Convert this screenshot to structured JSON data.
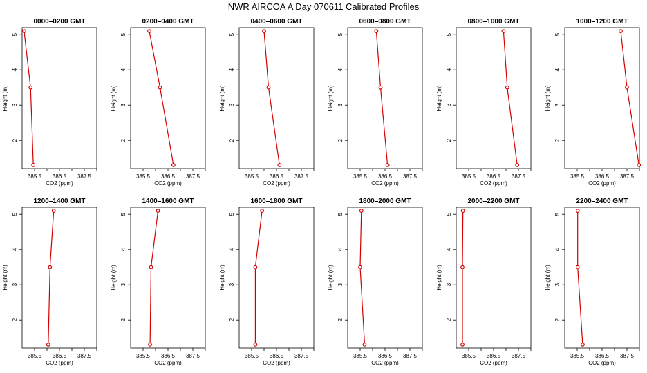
{
  "figure": {
    "title": "NWR AIRCOA A  Day 070611  Calibrated Profiles",
    "xlabel": "CO2 (ppm)",
    "ylabel": "Height (m)",
    "series_color": "#d40000",
    "marker_color": "#d40000"
  },
  "chart_data": [
    {
      "type": "line",
      "title": "0000–0200 GMT",
      "xlabel": "CO2 (ppm)",
      "ylabel": "Height (m)",
      "xlim": [
        385.0,
        388.0
      ],
      "ylim": [
        1.2,
        5.2
      ],
      "x_ticks": [
        385.5,
        386.5,
        387.5
      ],
      "x_tick_labels": [
        "385.5",
        "386.5",
        "387.5"
      ],
      "y_ticks": [
        2,
        3,
        4,
        5
      ],
      "y_tick_labels": [
        "2",
        "3",
        "4",
        "5"
      ],
      "points": [
        {
          "x": 385.45,
          "y": 1.3
        },
        {
          "x": 385.34,
          "y": 3.5
        },
        {
          "x": 385.08,
          "y": 5.1
        }
      ]
    },
    {
      "type": "line",
      "title": "0200–0400 GMT",
      "xlabel": "CO2 (ppm)",
      "ylabel": "Height (m)",
      "xlim": [
        385.0,
        388.0
      ],
      "ylim": [
        1.2,
        5.2
      ],
      "x_ticks": [
        385.5,
        386.5,
        387.5
      ],
      "x_tick_labels": [
        "385.5",
        "386.5",
        "387.5"
      ],
      "y_ticks": [
        2,
        3,
        4,
        5
      ],
      "y_tick_labels": [
        "2",
        "3",
        "4",
        "5"
      ],
      "points": [
        {
          "x": 386.72,
          "y": 1.3
        },
        {
          "x": 386.18,
          "y": 3.5
        },
        {
          "x": 385.75,
          "y": 5.1
        }
      ]
    },
    {
      "type": "line",
      "title": "0400–0600 GMT",
      "xlabel": "CO2 (ppm)",
      "ylabel": "Height (m)",
      "xlim": [
        385.0,
        388.0
      ],
      "ylim": [
        1.2,
        5.2
      ],
      "x_ticks": [
        385.5,
        386.5,
        387.5
      ],
      "x_tick_labels": [
        "385.5",
        "386.5",
        "387.5"
      ],
      "y_ticks": [
        2,
        3,
        4,
        5
      ],
      "y_tick_labels": [
        "2",
        "3",
        "4",
        "5"
      ],
      "points": [
        {
          "x": 386.62,
          "y": 1.3
        },
        {
          "x": 386.18,
          "y": 3.5
        },
        {
          "x": 386.0,
          "y": 5.1
        }
      ]
    },
    {
      "type": "line",
      "title": "0600–0800 GMT",
      "xlabel": "CO2 (ppm)",
      "ylabel": "Height (m)",
      "xlim": [
        385.0,
        388.0
      ],
      "ylim": [
        1.2,
        5.2
      ],
      "x_ticks": [
        385.5,
        386.5,
        387.5
      ],
      "x_tick_labels": [
        "385.5",
        "386.5",
        "387.5"
      ],
      "y_ticks": [
        2,
        3,
        4,
        5
      ],
      "y_tick_labels": [
        "2",
        "3",
        "4",
        "5"
      ],
      "points": [
        {
          "x": 386.6,
          "y": 1.3
        },
        {
          "x": 386.32,
          "y": 3.5
        },
        {
          "x": 386.15,
          "y": 5.1
        }
      ]
    },
    {
      "type": "line",
      "title": "0800–1000 GMT",
      "xlabel": "CO2 (ppm)",
      "ylabel": "Height (m)",
      "xlim": [
        385.0,
        388.0
      ],
      "ylim": [
        1.2,
        5.2
      ],
      "x_ticks": [
        385.5,
        386.5,
        387.5
      ],
      "x_tick_labels": [
        "385.5",
        "386.5",
        "387.5"
      ],
      "y_ticks": [
        2,
        3,
        4,
        5
      ],
      "y_tick_labels": [
        "2",
        "3",
        "4",
        "5"
      ],
      "points": [
        {
          "x": 387.45,
          "y": 1.3
        },
        {
          "x": 387.05,
          "y": 3.5
        },
        {
          "x": 386.9,
          "y": 5.1
        }
      ]
    },
    {
      "type": "line",
      "title": "1000–1200 GMT",
      "xlabel": "CO2 (ppm)",
      "ylabel": "Height (m)",
      "xlim": [
        385.0,
        388.0
      ],
      "ylim": [
        1.2,
        5.2
      ],
      "x_ticks": [
        385.5,
        386.5,
        387.5
      ],
      "x_tick_labels": [
        "385.5",
        "386.5",
        "387.5"
      ],
      "y_ticks": [
        2,
        3,
        4,
        5
      ],
      "y_tick_labels": [
        "2",
        "3",
        "4",
        "5"
      ],
      "points": [
        {
          "x": 387.98,
          "y": 1.3
        },
        {
          "x": 387.5,
          "y": 3.5
        },
        {
          "x": 387.25,
          "y": 5.1
        }
      ]
    },
    {
      "type": "line",
      "title": "1200–1400 GMT",
      "xlabel": "CO2 (ppm)",
      "ylabel": "Height (m)",
      "xlim": [
        385.0,
        388.0
      ],
      "ylim": [
        1.2,
        5.2
      ],
      "x_ticks": [
        385.5,
        386.5,
        387.5
      ],
      "x_tick_labels": [
        "385.5",
        "386.5",
        "387.5"
      ],
      "y_ticks": [
        2,
        3,
        4,
        5
      ],
      "y_tick_labels": [
        "2",
        "3",
        "4",
        "5"
      ],
      "points": [
        {
          "x": 386.05,
          "y": 1.3
        },
        {
          "x": 386.12,
          "y": 3.5
        },
        {
          "x": 386.27,
          "y": 5.1
        }
      ]
    },
    {
      "type": "line",
      "title": "1400–1600 GMT",
      "xlabel": "CO2 (ppm)",
      "ylabel": "Height (m)",
      "xlim": [
        385.0,
        388.0
      ],
      "ylim": [
        1.2,
        5.2
      ],
      "x_ticks": [
        385.5,
        386.5,
        387.5
      ],
      "x_tick_labels": [
        "385.5",
        "386.5",
        "387.5"
      ],
      "y_ticks": [
        2,
        3,
        4,
        5
      ],
      "y_tick_labels": [
        "2",
        "3",
        "4",
        "5"
      ],
      "points": [
        {
          "x": 385.78,
          "y": 1.3
        },
        {
          "x": 385.82,
          "y": 3.5
        },
        {
          "x": 386.1,
          "y": 5.1
        }
      ]
    },
    {
      "type": "line",
      "title": "1600–1800 GMT",
      "xlabel": "CO2 (ppm)",
      "ylabel": "Height (m)",
      "xlim": [
        385.0,
        388.0
      ],
      "ylim": [
        1.2,
        5.2
      ],
      "x_ticks": [
        385.5,
        386.5,
        387.5
      ],
      "x_tick_labels": [
        "385.5",
        "386.5",
        "387.5"
      ],
      "y_ticks": [
        2,
        3,
        4,
        5
      ],
      "y_tick_labels": [
        "2",
        "3",
        "4",
        "5"
      ],
      "points": [
        {
          "x": 385.65,
          "y": 1.3
        },
        {
          "x": 385.65,
          "y": 3.5
        },
        {
          "x": 385.92,
          "y": 5.1
        }
      ]
    },
    {
      "type": "line",
      "title": "1800–2000 GMT",
      "xlabel": "CO2 (ppm)",
      "ylabel": "Height (m)",
      "xlim": [
        385.0,
        388.0
      ],
      "ylim": [
        1.2,
        5.2
      ],
      "x_ticks": [
        385.5,
        386.5,
        387.5
      ],
      "x_tick_labels": [
        "385.5",
        "386.5",
        "387.5"
      ],
      "y_ticks": [
        2,
        3,
        4,
        5
      ],
      "y_tick_labels": [
        "2",
        "3",
        "4",
        "5"
      ],
      "points": [
        {
          "x": 385.68,
          "y": 1.3
        },
        {
          "x": 385.5,
          "y": 3.5
        },
        {
          "x": 385.55,
          "y": 5.1
        }
      ]
    },
    {
      "type": "line",
      "title": "2000–2200 GMT",
      "xlabel": "CO2 (ppm)",
      "ylabel": "Height (m)",
      "xlim": [
        385.0,
        388.0
      ],
      "ylim": [
        1.2,
        5.2
      ],
      "x_ticks": [
        385.5,
        386.5,
        387.5
      ],
      "x_tick_labels": [
        "385.5",
        "386.5",
        "387.5"
      ],
      "y_ticks": [
        2,
        3,
        4,
        5
      ],
      "y_tick_labels": [
        "2",
        "3",
        "4",
        "5"
      ],
      "points": [
        {
          "x": 385.25,
          "y": 1.3
        },
        {
          "x": 385.25,
          "y": 3.5
        },
        {
          "x": 385.27,
          "y": 5.1
        }
      ]
    },
    {
      "type": "line",
      "title": "2200–2400 GMT",
      "xlabel": "CO2 (ppm)",
      "ylabel": "Height (m)",
      "xlim": [
        385.0,
        388.0
      ],
      "ylim": [
        1.2,
        5.2
      ],
      "x_ticks": [
        385.5,
        386.5,
        387.5
      ],
      "x_tick_labels": [
        "385.5",
        "386.5",
        "387.5"
      ],
      "y_ticks": [
        2,
        3,
        4,
        5
      ],
      "y_tick_labels": [
        "2",
        "3",
        "4",
        "5"
      ],
      "points": [
        {
          "x": 385.72,
          "y": 1.3
        },
        {
          "x": 385.52,
          "y": 3.5
        },
        {
          "x": 385.52,
          "y": 5.1
        }
      ]
    }
  ]
}
